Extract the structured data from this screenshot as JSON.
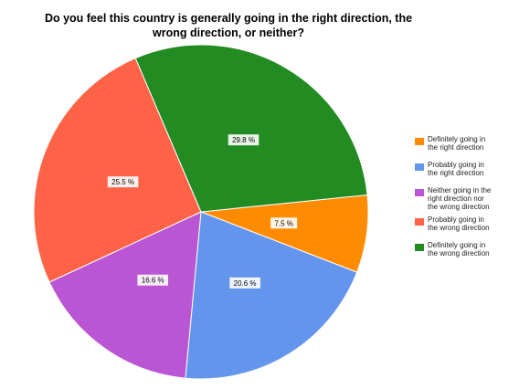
{
  "chart_data": {
    "type": "pie",
    "title_lines": [
      "Do you feel this country is generally going in the right direction, the",
      "wrong direction, or neither?"
    ],
    "slices": [
      {
        "label": "Definitely going in the right direction",
        "legend_lines": [
          "Definitely going in",
          "the right direction"
        ],
        "value": 7.5,
        "value_label": "7.5 %",
        "color": "#ff8c00"
      },
      {
        "label": "Probably going in the right direction",
        "legend_lines": [
          "Probably going in",
          "the right direction"
        ],
        "value": 20.6,
        "value_label": "20.6 %",
        "color": "#6495ed"
      },
      {
        "label": "Neither going in the right direction nor the wrong direction",
        "legend_lines": [
          "Neither going in the",
          "right direction nor",
          "the wrong direction"
        ],
        "value": 16.6,
        "value_label": "16.6 %",
        "color": "#ba55d3"
      },
      {
        "label": "Probably going in the wrong direction",
        "legend_lines": [
          "Probably going in",
          "the wrong direction"
        ],
        "value": 25.5,
        "value_label": "25.5 %",
        "color": "#ff6347"
      },
      {
        "label": "Definitely going in the wrong direction",
        "legend_lines": [
          "Definitely going in",
          "the wrong direction"
        ],
        "value": 29.8,
        "value_label": "29.8 %",
        "color": "#228b22"
      }
    ],
    "legend_position": "right"
  }
}
